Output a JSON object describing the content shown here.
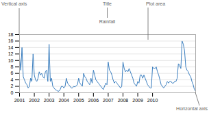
{
  "chart_data": {
    "type": "line",
    "title": "Rainfall",
    "annotations": [
      "Title",
      "Vertical axis",
      "Plot area",
      "Horizontal axis"
    ],
    "categories": [
      "2001",
      null,
      null,
      null,
      null,
      null,
      null,
      null,
      null,
      null,
      null,
      null,
      "2002",
      null,
      null,
      null,
      null,
      null,
      null,
      null,
      null,
      null,
      null,
      null,
      "2003",
      null,
      null,
      null,
      null,
      null,
      null,
      null,
      null,
      null,
      null,
      null,
      "2004",
      null,
      null,
      null,
      null,
      null,
      null,
      null,
      null,
      null,
      null,
      null,
      "2005",
      null,
      null,
      null,
      null,
      null,
      null,
      null,
      null,
      null,
      null,
      null,
      "2006",
      null,
      null,
      null,
      null,
      null,
      null,
      null,
      null,
      null,
      null,
      null,
      "2007",
      null,
      null,
      null,
      null,
      null,
      null,
      null,
      null,
      null,
      null,
      null,
      "2008",
      null,
      null,
      null,
      null,
      null,
      null,
      null,
      null,
      null,
      null,
      null,
      "2009",
      null,
      null,
      null,
      null,
      null,
      null,
      null,
      null,
      null,
      null,
      null,
      "2010",
      null,
      null,
      null,
      null,
      null,
      null,
      null,
      null,
      null,
      null,
      null,
      null,
      null,
      null,
      null,
      null,
      null,
      null,
      null,
      null,
      null,
      null,
      null,
      null,
      null,
      null,
      null,
      null,
      null,
      null,
      null,
      null,
      null,
      null,
      null
    ],
    "values": [
      11.0,
      7.0,
      14.0,
      5.0,
      4.0,
      3.0,
      2.5,
      1.5,
      2.0,
      4.5,
      3.5,
      12.0,
      5.5,
      4.0,
      3.5,
      4.5,
      6.5,
      5.5,
      6.0,
      5.0,
      4.5,
      6.5,
      7.0,
      3.5,
      15.0,
      3.5,
      4.5,
      2.0,
      1.5,
      1.0,
      0.8,
      0.5,
      0.5,
      1.0,
      2.0,
      2.0,
      1.5,
      2.0,
      4.5,
      3.0,
      2.5,
      2.0,
      1.5,
      1.5,
      2.0,
      1.8,
      2.2,
      2.5,
      4.5,
      3.0,
      2.5,
      2.0,
      6.0,
      5.0,
      4.5,
      3.5,
      3.0,
      2.5,
      4.5,
      3.0,
      7.0,
      5.5,
      4.0,
      3.5,
      3.0,
      2.5,
      2.0,
      1.5,
      1.0,
      2.0,
      3.0,
      2.5,
      9.5,
      7.0,
      6.5,
      5.5,
      4.0,
      3.0,
      3.5,
      3.0,
      2.5,
      2.0,
      1.5,
      2.0,
      9.5,
      7.5,
      6.5,
      7.0,
      6.5,
      7.5,
      6.5,
      5.5,
      4.5,
      3.0,
      2.5,
      2.0,
      3.5,
      3.0,
      5.5,
      5.5,
      4.5,
      5.5,
      4.5,
      3.5,
      2.5,
      2.0,
      1.5,
      1.5,
      8.0,
      7.5,
      7.5,
      8.0,
      6.5,
      5.5,
      4.0,
      2.5,
      2.0,
      1.5,
      2.0,
      2.5,
      3.5,
      3.0,
      3.5,
      3.5,
      3.0,
      3.0,
      3.5,
      3.5,
      4.5,
      9.0,
      8.5,
      7.5,
      16.0,
      15.0,
      13.0,
      8.0,
      7.0,
      6.5,
      5.5,
      5.0,
      3.5,
      2.5,
      1.0,
      0.5
    ],
    "color": "#3a7ebf",
    "ylim": [
      0,
      18
    ],
    "yticks": [
      0,
      2,
      4,
      6,
      8,
      10,
      12,
      14,
      16,
      18
    ],
    "grid": true
  }
}
